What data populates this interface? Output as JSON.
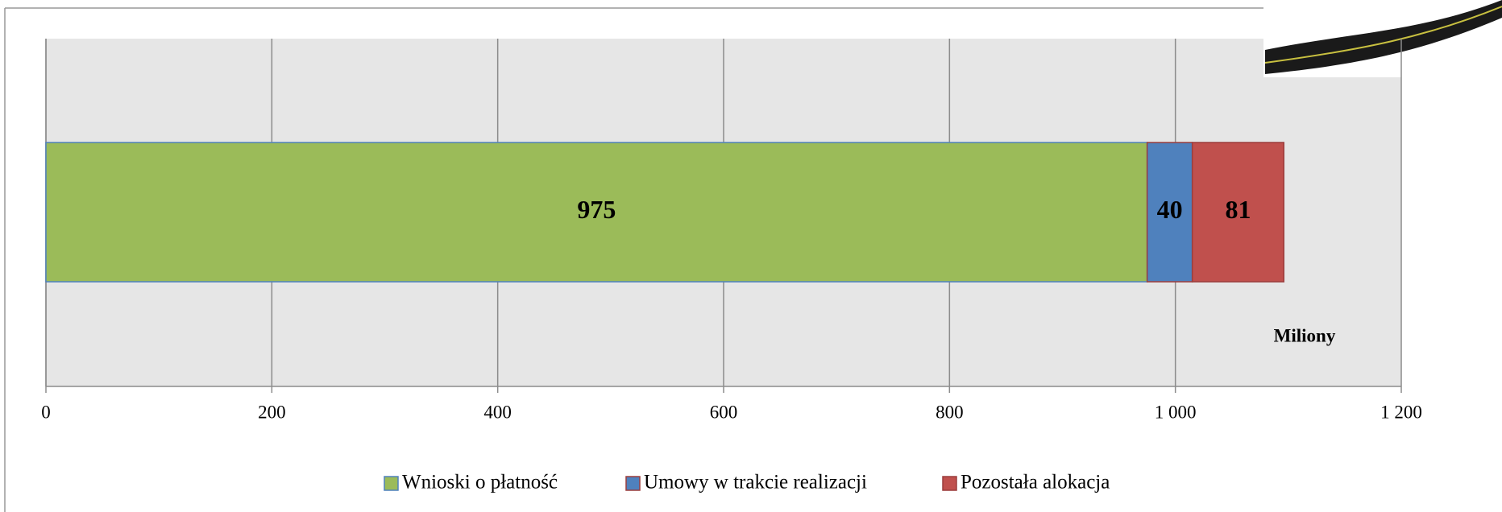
{
  "chart_data": {
    "type": "stacked-bar-horizontal",
    "x_label": "Miliony",
    "series": [
      {
        "name": "Wnioski o płatność",
        "color": "#9bbb59",
        "values": [
          975
        ]
      },
      {
        "name": "Umowy w trakcie realizacji",
        "color": "#4f81bd",
        "values": [
          40
        ]
      },
      {
        "name": "Pozostała alokacja",
        "color": "#c0504d",
        "values": [
          81
        ]
      }
    ],
    "xlim": [
      0,
      1200
    ],
    "xticks": [
      0,
      200,
      400,
      600,
      800,
      {
        "value": 1000,
        "label": "1 000"
      },
      {
        "value": 1200,
        "label": "1 200"
      }
    ],
    "grid": true
  }
}
